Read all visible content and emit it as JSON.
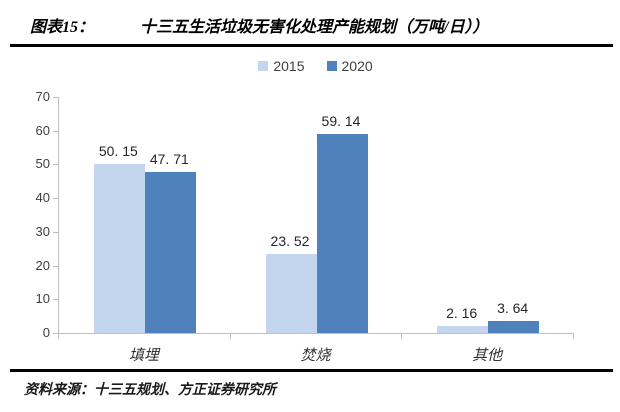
{
  "header": {
    "figure_label": "图表15：",
    "title": "十三五生活垃圾无害化处理产能规划（万吨/日））"
  },
  "chart_data": {
    "type": "bar",
    "title": "十三五生活垃圾无害化处理产能规划（万吨/日）",
    "categories": [
      "填埋",
      "焚烧",
      "其他"
    ],
    "series": [
      {
        "name": "2015",
        "color": "#c3d6ee",
        "values": [
          50.15,
          23.52,
          2.16
        ],
        "value_labels": [
          "50. 15",
          "23. 52",
          "2. 16"
        ]
      },
      {
        "name": "2020",
        "color": "#4f81bd",
        "values": [
          47.71,
          59.14,
          3.64
        ],
        "value_labels": [
          "47. 71",
          "59. 14",
          "3. 64"
        ]
      }
    ],
    "ylim": [
      0,
      70
    ],
    "yticks": [
      0,
      10,
      20,
      30,
      40,
      50,
      60,
      70
    ],
    "grid": false,
    "legend_position": "top"
  },
  "footer": {
    "source": "资料来源：十三五规划、方正证券研究所"
  },
  "colors": {
    "axis": "#c0c0c0",
    "rule": "#000000",
    "value_text": "#262626"
  }
}
